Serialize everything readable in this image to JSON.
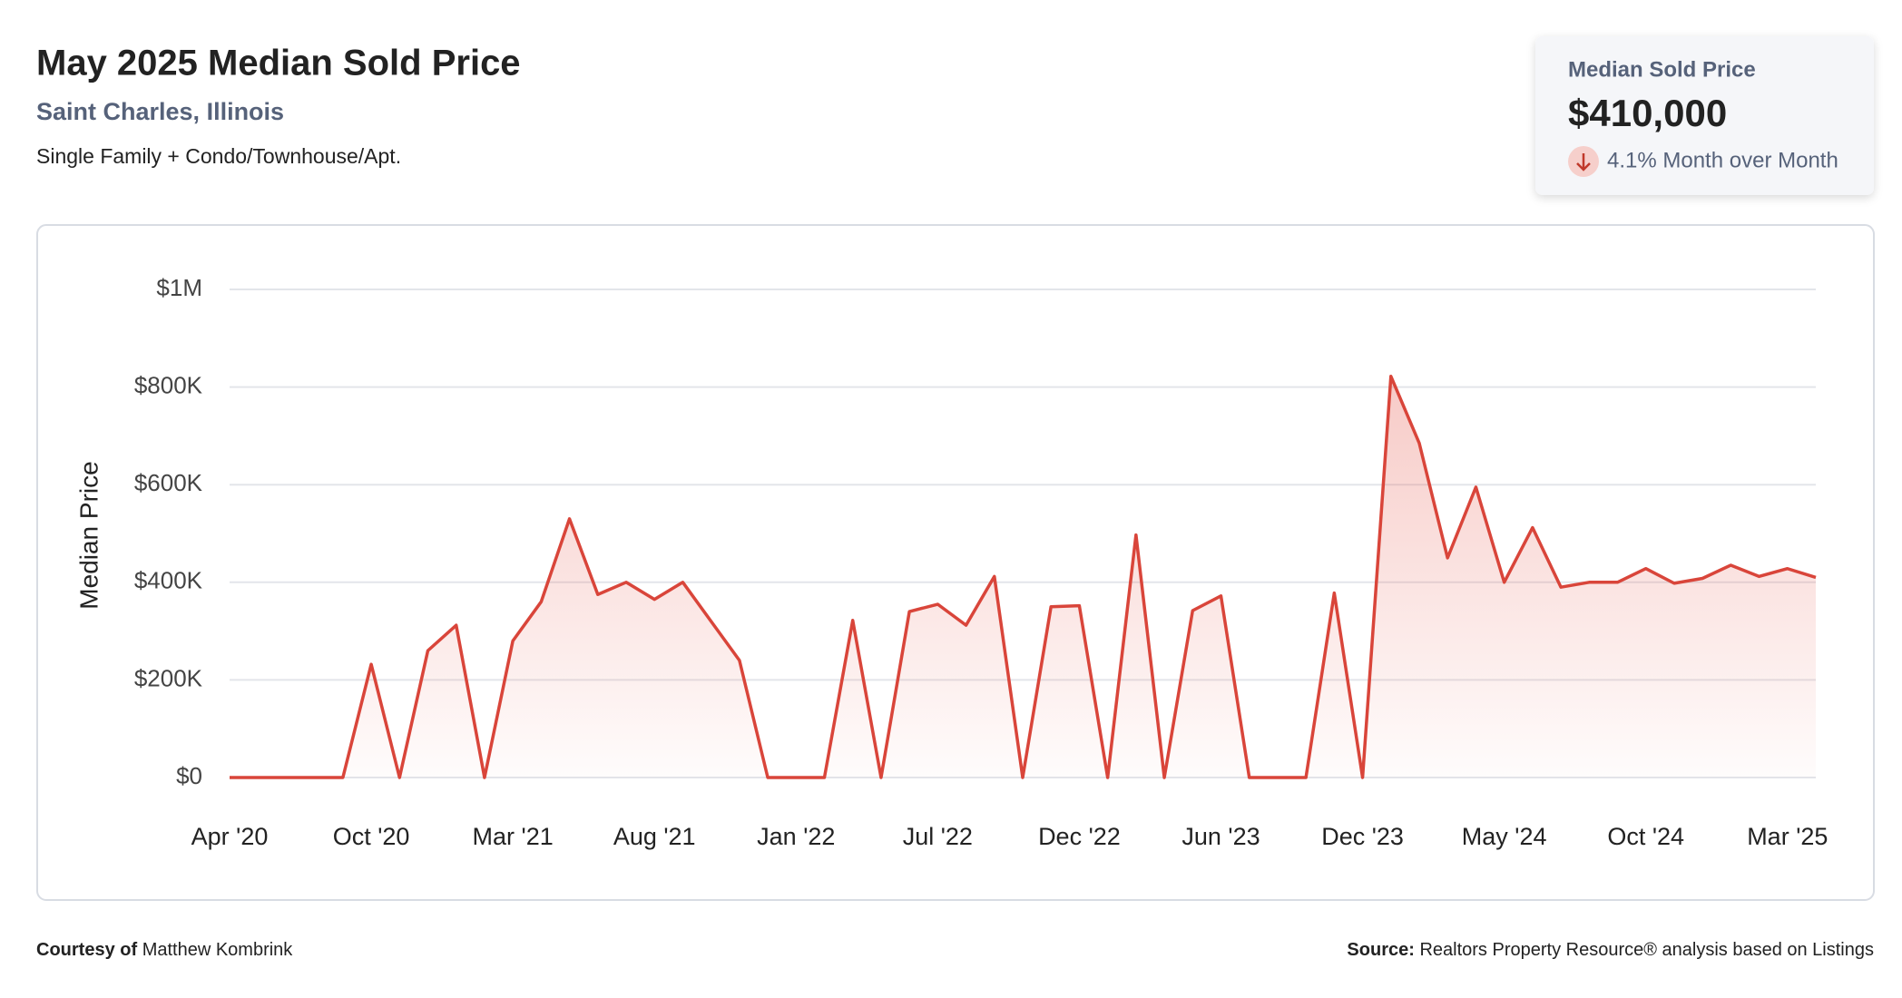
{
  "header": {
    "title": "May 2025 Median Sold Price",
    "location": "Saint Charles, Illinois",
    "property_type": "Single Family + Condo/Townhouse/Apt."
  },
  "summary": {
    "label": "Median Sold Price",
    "value": "$410,000",
    "change": "4.1% Month over Month"
  },
  "footer": {
    "courtesy_label": "Courtesy of",
    "courtesy_name": "Matthew Kombrink",
    "source_label": "Source:",
    "source_text": "Realtors Property Resource® analysis based on Listings"
  },
  "chart_data": {
    "type": "line",
    "y_label": "Median Price",
    "color": "#d9453a",
    "grid": true,
    "categories": [
      "Apr '20",
      null,
      null,
      null,
      null,
      "Oct '20",
      null,
      null,
      null,
      null,
      "Mar '21",
      null,
      null,
      null,
      null,
      "Aug '21",
      null,
      null,
      null,
      null,
      "Jan '22",
      null,
      null,
      null,
      null,
      "Jul '22",
      null,
      null,
      null,
      null,
      "Dec '22",
      null,
      null,
      null,
      null,
      "Jun '23",
      null,
      null,
      null,
      null,
      "Dec '23",
      null,
      null,
      null,
      null,
      "May '24",
      null,
      null,
      null,
      null,
      "Oct '24",
      null,
      null,
      null,
      null,
      "Mar '25",
      null
    ],
    "series": [
      {
        "name": "Median Price",
        "color": "#d9453a",
        "values": [
          0,
          0,
          0,
          0,
          0,
          232000,
          0,
          260000,
          312000,
          0,
          280000,
          360000,
          530000,
          375000,
          400000,
          365000,
          400000,
          320000,
          240000,
          0,
          0,
          0,
          322000,
          0,
          340000,
          355000,
          312000,
          412000,
          0,
          350000,
          352000,
          0,
          497000,
          0,
          342000,
          372000,
          0,
          0,
          0,
          378000,
          0,
          822000,
          685000,
          450000,
          595000,
          400000,
          512000,
          390000,
          400000,
          400000,
          428000,
          398000,
          408000,
          435000,
          412000,
          428000,
          410000
        ]
      }
    ],
    "ylim": [
      0,
      1000000
    ],
    "yticks": [
      {
        "value": 0,
        "label": "$0"
      },
      {
        "value": 200000,
        "label": "$200K"
      },
      {
        "value": 400000,
        "label": "$400K"
      },
      {
        "value": 600000,
        "label": "$600K"
      },
      {
        "value": 800000,
        "label": "$800K"
      },
      {
        "value": 1000000,
        "label": "$1M"
      }
    ]
  }
}
